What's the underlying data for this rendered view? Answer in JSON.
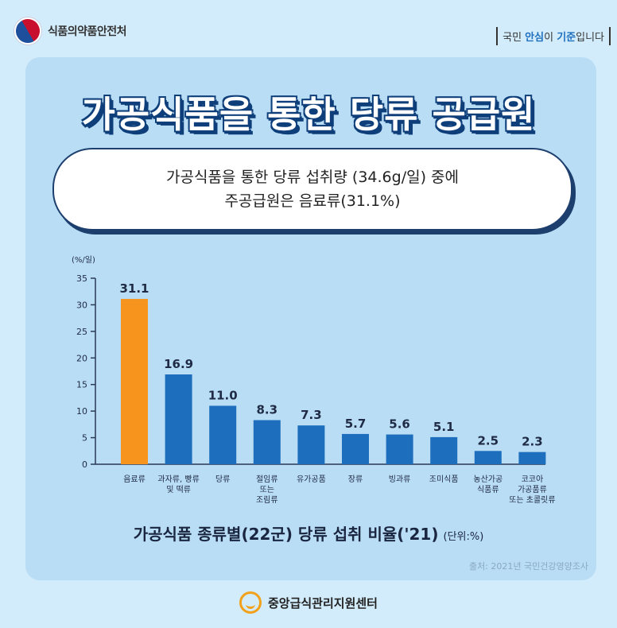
{
  "header": {
    "agency": "식품의약품안전처",
    "slogan_pre": "국민 ",
    "slogan_b1": "안심",
    "slogan_mid": "이 ",
    "slogan_b2": "기준",
    "slogan_post": "입니다"
  },
  "title": "가공식품을 통한 당류 공급원",
  "bubble": {
    "line1": "가공식품을 통한 당류 섭취량 (34.6g/일) 중에",
    "line2": "주공급원은 음료류(31.1%)"
  },
  "chart_data": {
    "type": "bar",
    "ylabel": "(%/일)",
    "ylim": [
      0,
      35
    ],
    "yticks": [
      0,
      5,
      10,
      15,
      20,
      25,
      30,
      35
    ],
    "categories": [
      [
        "음료류"
      ],
      [
        "과자류, 빵류",
        "및 떡류"
      ],
      [
        "당류"
      ],
      [
        "절임류",
        "또는",
        "조림류"
      ],
      [
        "유가공품"
      ],
      [
        "장류"
      ],
      [
        "빙과류"
      ],
      [
        "조미식품"
      ],
      [
        "농산가공",
        "식품류"
      ],
      [
        "코코아",
        "가공품류",
        "또는 초콜릿류"
      ]
    ],
    "values": [
      31.1,
      16.9,
      11.0,
      8.3,
      7.3,
      5.7,
      5.6,
      5.1,
      2.5,
      2.3
    ],
    "value_labels": [
      "31.1",
      "16.9",
      "11.0",
      "8.3",
      "7.3",
      "5.7",
      "5.6",
      "5.1",
      "2.5",
      "2.3"
    ],
    "colors": {
      "highlight": "#f7941d",
      "default": "#1d6fbe",
      "axis": "#2b3a55",
      "label": "#1f2a44"
    }
  },
  "caption": {
    "main": "가공식품 종류별(22군) 당류 섭취 비율('21)",
    "unit": "(단위:%)"
  },
  "source": "출처: 2021년 국민건강영양조사",
  "footer": {
    "name": "중앙급식관리지원센터"
  }
}
